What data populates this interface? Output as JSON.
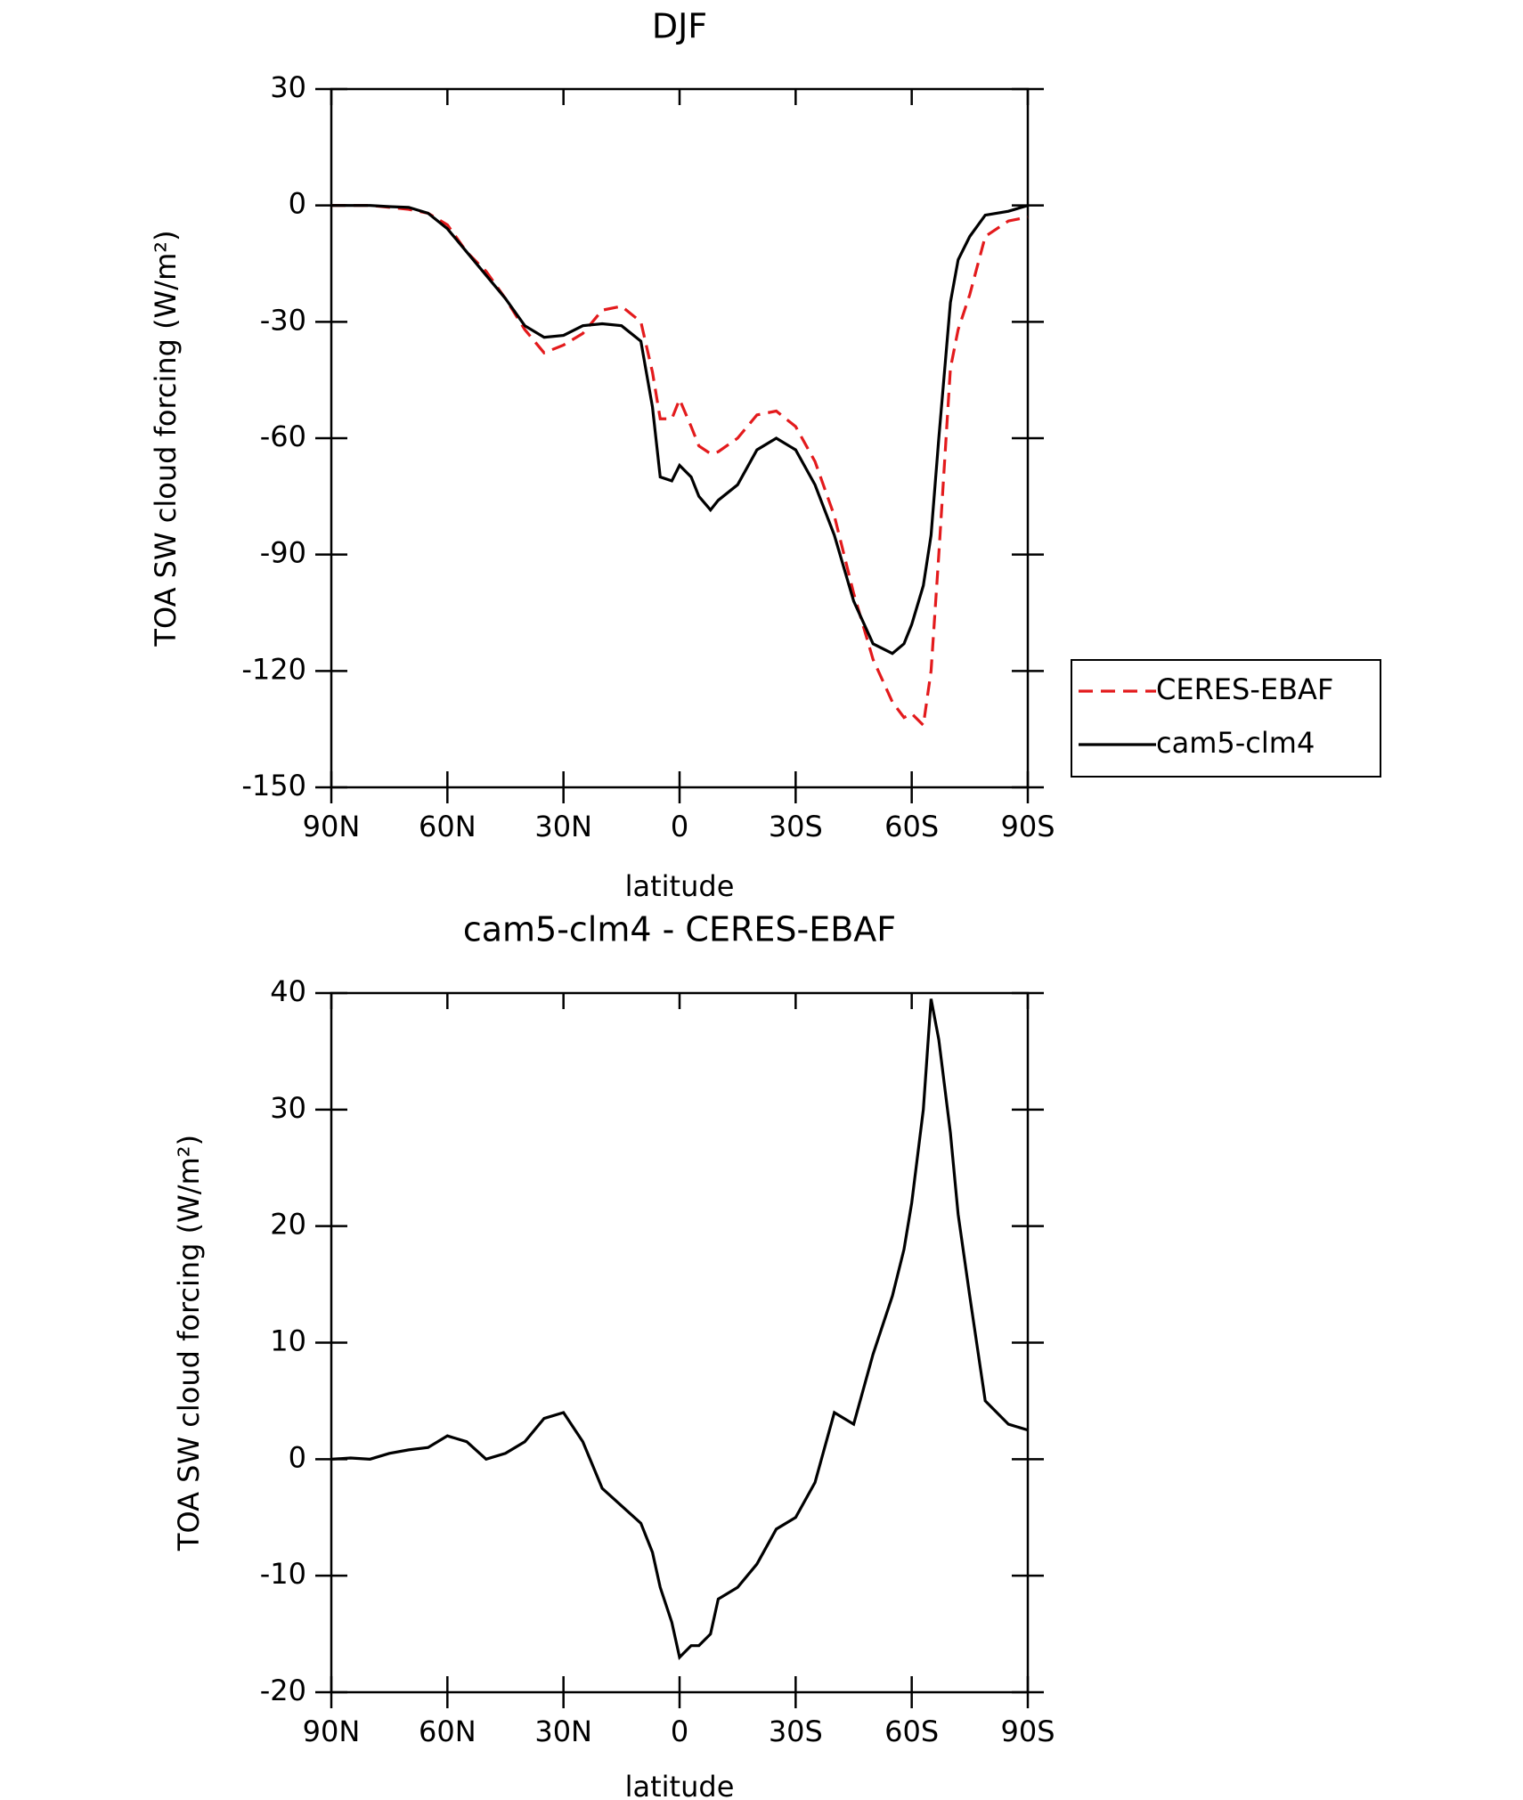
{
  "chart_data": [
    {
      "type": "line",
      "title": "DJF",
      "xlabel": "latitude",
      "ylabel": "TOA SW cloud forcing (W/m²)",
      "x": [
        90,
        85,
        80,
        75,
        70,
        65,
        60,
        55,
        50,
        45,
        40,
        35,
        30,
        25,
        20,
        15,
        10,
        7,
        5,
        2,
        0,
        -3,
        -5,
        -8,
        -10,
        -15,
        -20,
        -25,
        -30,
        -35,
        -40,
        -45,
        -50,
        -55,
        -58,
        -60,
        -63,
        -65,
        -67,
        -70,
        -72,
        -75,
        -79,
        -85,
        -90
      ],
      "series": [
        {
          "name": "CERES-EBAF",
          "color": "#e31a1c",
          "dash": true,
          "values": [
            0,
            0,
            0,
            -0.5,
            -1,
            -2,
            -5,
            -12,
            -17,
            -24,
            -32,
            -38,
            -36,
            -33,
            -27,
            -26,
            -30,
            -43,
            -55,
            -55,
            -50,
            -57,
            -62,
            -64,
            -63.5,
            -60,
            -54,
            -53,
            -57,
            -66,
            -80,
            -100,
            -117,
            -128,
            -132,
            -131,
            -134,
            -120,
            -90,
            -42,
            -32,
            -23,
            -8,
            -4,
            -3
          ]
        },
        {
          "name": "cam5-clm4",
          "color": "#000000",
          "dash": false,
          "values": [
            0,
            0,
            0,
            -0.3,
            -0.5,
            -2,
            -6,
            -12,
            -18,
            -24,
            -31,
            -34,
            -33.5,
            -31,
            -30.5,
            -31,
            -35,
            -52,
            -70,
            -71,
            -67,
            -70,
            -75,
            -78.5,
            -76,
            -72,
            -63,
            -60,
            -63,
            -72,
            -85,
            -102,
            -113,
            -115.5,
            -113,
            -108,
            -98,
            -85,
            -60,
            -25,
            -14,
            -8,
            -2.5,
            -1.5,
            0
          ]
        }
      ],
      "xlim": [
        90,
        -90
      ],
      "xticks": [
        {
          "value": 90,
          "label": "90N"
        },
        {
          "value": 60,
          "label": "60N"
        },
        {
          "value": 30,
          "label": "30N"
        },
        0,
        {
          "value": -30,
          "label": "30S"
        },
        {
          "value": -60,
          "label": "60S"
        },
        {
          "value": -90,
          "label": "90S"
        }
      ],
      "ylim": [
        -150,
        30
      ],
      "yticks": [
        -150,
        -120,
        -90,
        -60,
        -30,
        0,
        30
      ],
      "legend": "right"
    },
    {
      "type": "line",
      "title": "cam5-clm4 - CERES-EBAF",
      "xlabel": "latitude",
      "ylabel": "TOA SW cloud forcing (W/m²)",
      "x": [
        90,
        85,
        80,
        75,
        70,
        65,
        60,
        55,
        50,
        45,
        40,
        35,
        30,
        25,
        20,
        15,
        10,
        7,
        5,
        2,
        0,
        -3,
        -5,
        -8,
        -10,
        -15,
        -20,
        -25,
        -30,
        -35,
        -40,
        -45,
        -50,
        -55,
        -58,
        -60,
        -63,
        -65,
        -67,
        -70,
        -72,
        -75,
        -79,
        -85,
        -90
      ],
      "series": [
        {
          "color": "#000000",
          "dash": false,
          "values": [
            0,
            0.1,
            0,
            0.5,
            0.8,
            1,
            2,
            1.5,
            0,
            0.5,
            1.5,
            3.5,
            4,
            1.5,
            -2.5,
            -4,
            -5.5,
            -8,
            -11,
            -14,
            -17,
            -16,
            -16,
            -15,
            -12,
            -11,
            -9,
            -6,
            -5,
            -2,
            4,
            3,
            9,
            14,
            18,
            22,
            30,
            39.5,
            36,
            28,
            21,
            14,
            5,
            3,
            2.5
          ]
        }
      ],
      "xlim": [
        90,
        -90
      ],
      "xticks": [
        {
          "value": 90,
          "label": "90N"
        },
        {
          "value": 60,
          "label": "60N"
        },
        {
          "value": 30,
          "label": "30N"
        },
        0,
        {
          "value": -30,
          "label": "30S"
        },
        {
          "value": -60,
          "label": "60S"
        },
        {
          "value": -90,
          "label": "90S"
        }
      ],
      "ylim": [
        -20,
        40
      ],
      "yticks": [
        -20,
        -10,
        0,
        10,
        20,
        30,
        40
      ]
    }
  ]
}
